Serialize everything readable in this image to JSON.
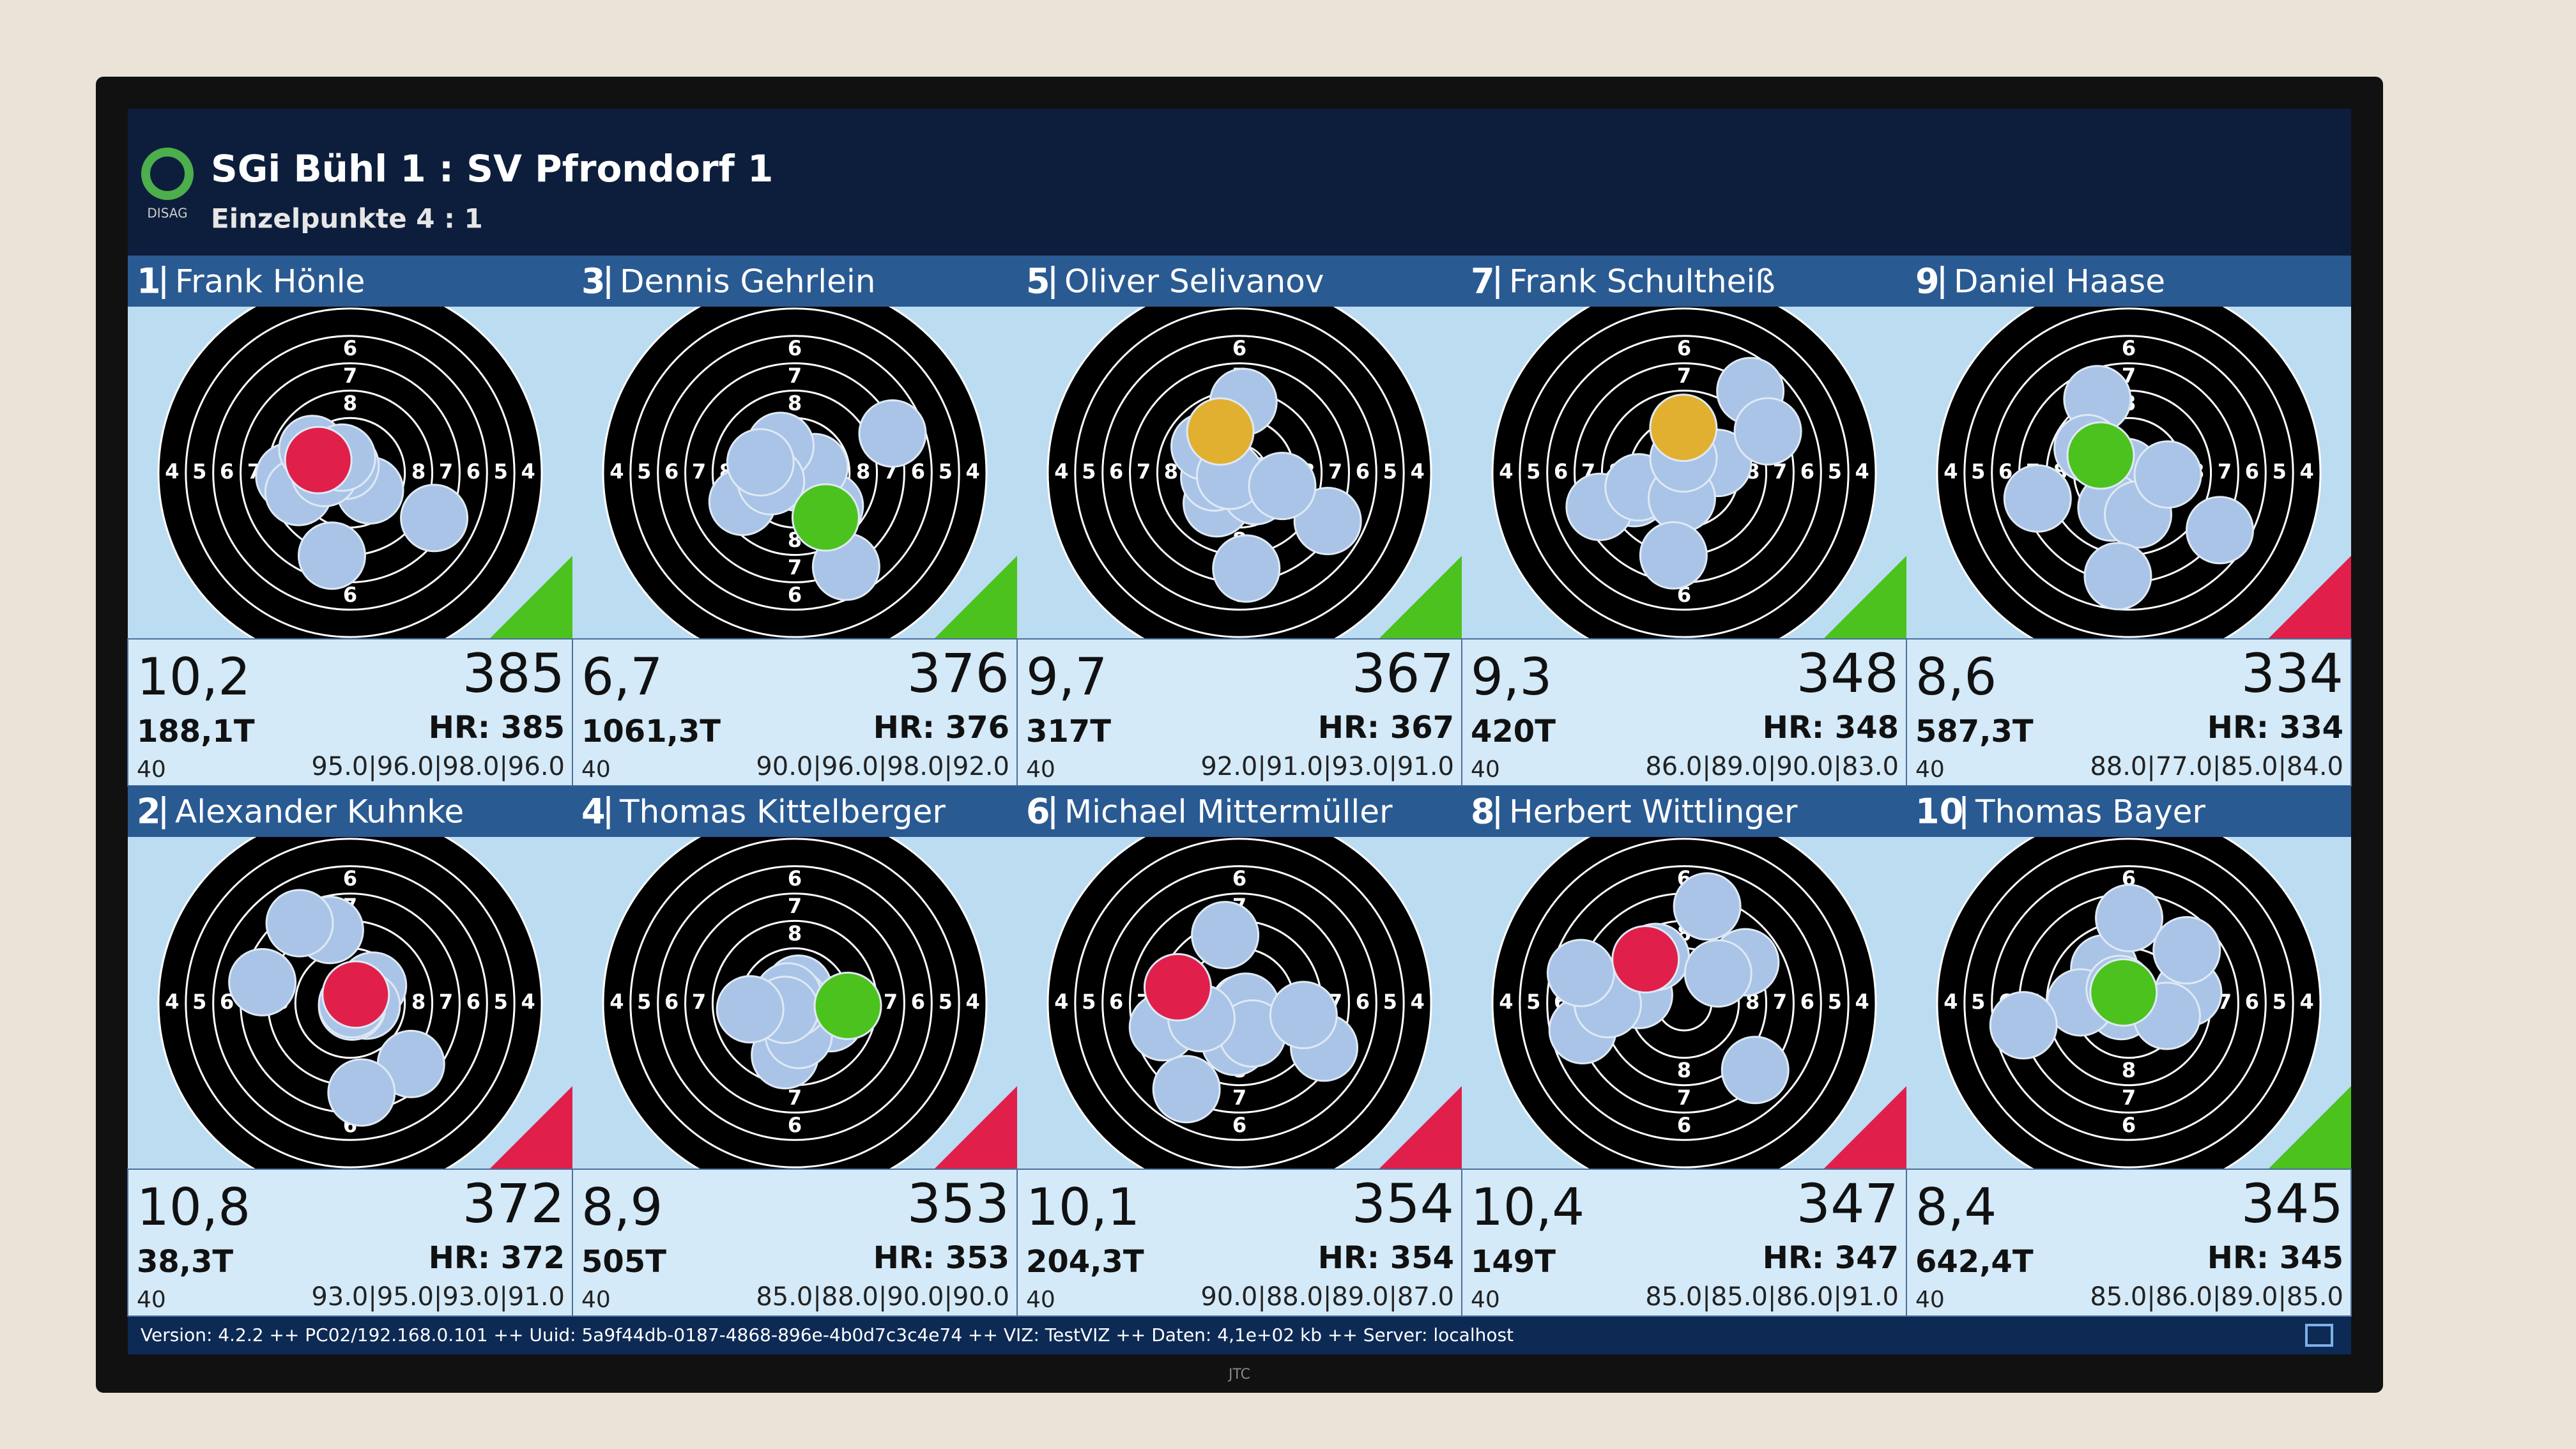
{
  "header": {
    "logo": "DISAG",
    "title": "SGi Bühl 1 : SV Pfrondorf 1",
    "subtitle": "Einzelpunkte 4 : 1"
  },
  "target_ring_labels": [
    "4",
    "5",
    "6",
    "7",
    "8"
  ],
  "panels": [
    {
      "rank": "1",
      "name": "Frank Hönle",
      "shot": "10,2",
      "total": "385",
      "time": "188,1T",
      "hr": "HR: 385",
      "shots": "40",
      "series": "95.0|96.0|98.0|96.0"
    },
    {
      "rank": "3",
      "name": "Dennis Gehrlein",
      "shot": "6,7",
      "total": "376",
      "time": "1061,3T",
      "hr": "HR: 376",
      "shots": "40",
      "series": "90.0|96.0|98.0|92.0"
    },
    {
      "rank": "5",
      "name": "Oliver Selivanov",
      "shot": "9,7",
      "total": "367",
      "time": "317T",
      "hr": "HR: 367",
      "shots": "40",
      "series": "92.0|91.0|93.0|91.0"
    },
    {
      "rank": "7",
      "name": "Frank Schultheiß",
      "shot": "9,3",
      "total": "348",
      "time": "420T",
      "hr": "HR: 348",
      "shots": "40",
      "series": "86.0|89.0|90.0|83.0"
    },
    {
      "rank": "9",
      "name": "Daniel Haase",
      "shot": "8,6",
      "total": "334",
      "time": "587,3T",
      "hr": "HR: 334",
      "shots": "40",
      "series": "88.0|77.0|85.0|84.0"
    },
    {
      "rank": "2",
      "name": "Alexander Kuhnke",
      "shot": "10,8",
      "total": "372",
      "time": "38,3T",
      "hr": "HR: 372",
      "shots": "40",
      "series": "93.0|95.0|93.0|91.0"
    },
    {
      "rank": "4",
      "name": "Thomas Kittelberger",
      "shot": "8,9",
      "total": "353",
      "time": "505T",
      "hr": "HR: 353",
      "shots": "40",
      "series": "85.0|88.0|90.0|90.0"
    },
    {
      "rank": "6",
      "name": "Michael Mittermüller",
      "shot": "10,1",
      "total": "354",
      "time": "204,3T",
      "hr": "HR: 354",
      "shots": "40",
      "series": "90.0|88.0|89.0|87.0"
    },
    {
      "rank": "8",
      "name": "Herbert Wittlinger",
      "shot": "10,4",
      "total": "347",
      "time": "149T",
      "hr": "HR: 347",
      "shots": "40",
      "series": "85.0|85.0|86.0|91.0"
    },
    {
      "rank": "10",
      "name": "Thomas Bayer",
      "shot": "8,4",
      "total": "345",
      "time": "642,4T",
      "hr": "HR: 345",
      "shots": "40",
      "series": "85.0|86.0|89.0|85.0"
    }
  ],
  "footer": "Version: 4.2.2 ++ PC02/192.168.0.101 ++ Uuid: 5a9f44db-0187-4868-896e-4b0d7c3c4e74 ++ VIZ: TestVIZ ++ Daten: 4,1e+02 kb ++ Server: localhost",
  "tv_brand": "JTC"
}
